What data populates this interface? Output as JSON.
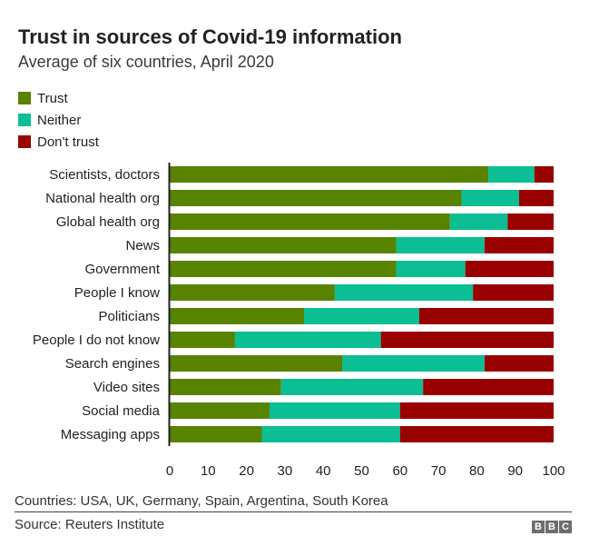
{
  "chart_data": {
    "type": "bar",
    "orientation": "horizontal",
    "stacked": true,
    "title": "Trust in sources of Covid-19 information",
    "subtitle": "Average of six countries, April 2020",
    "xlabel": "",
    "ylabel": "",
    "xlim": [
      0,
      100
    ],
    "xticks": [
      0,
      10,
      20,
      30,
      40,
      50,
      60,
      70,
      80,
      90,
      100
    ],
    "grid": false,
    "legend_position": "top-left",
    "categories": [
      "Scientists, doctors",
      "National health org",
      "Global health org",
      "News",
      "Government",
      "People I know",
      "Politicians",
      "People I do not know",
      "Search engines",
      "Video sites",
      "Social media",
      "Messaging apps"
    ],
    "series": [
      {
        "name": "Trust",
        "color": "#588300",
        "values": [
          83,
          76,
          73,
          59,
          59,
          43,
          35,
          17,
          45,
          29,
          26,
          24
        ]
      },
      {
        "name": "Neither",
        "color": "#0bbe93",
        "values": [
          12,
          15,
          15,
          23,
          18,
          36,
          30,
          38,
          37,
          37,
          34,
          36
        ]
      },
      {
        "name": "Don't trust",
        "color": "#990000",
        "values": [
          5,
          9,
          12,
          18,
          23,
          21,
          35,
          45,
          18,
          34,
          40,
          40
        ]
      }
    ]
  },
  "footer": {
    "note": "Countries: USA, UK, Germany, Spain, Argentina, South Korea",
    "source": "Source: Reuters Institute",
    "logo": [
      "B",
      "B",
      "C"
    ]
  }
}
